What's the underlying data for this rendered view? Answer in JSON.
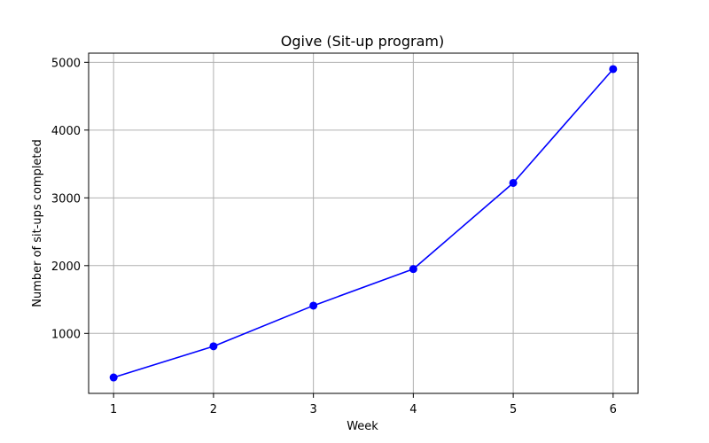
{
  "chart_data": {
    "type": "line",
    "title": "Ogive (Sit-up program)",
    "xlabel": "Week",
    "ylabel": "Number of sit-ups completed",
    "x": [
      1,
      2,
      3,
      4,
      5,
      6
    ],
    "series": [
      {
        "values": [
          350,
          810,
          1410,
          1950,
          3220,
          4900
        ],
        "color": "#0000ff",
        "marker": "circle"
      }
    ],
    "xlim": [
      0.75,
      6.25
    ],
    "ylim": [
      115,
      5135
    ],
    "xticks": [
      1,
      2,
      3,
      4,
      5,
      6
    ],
    "yticks": [
      1000,
      2000,
      3000,
      4000,
      5000
    ],
    "grid": true
  }
}
